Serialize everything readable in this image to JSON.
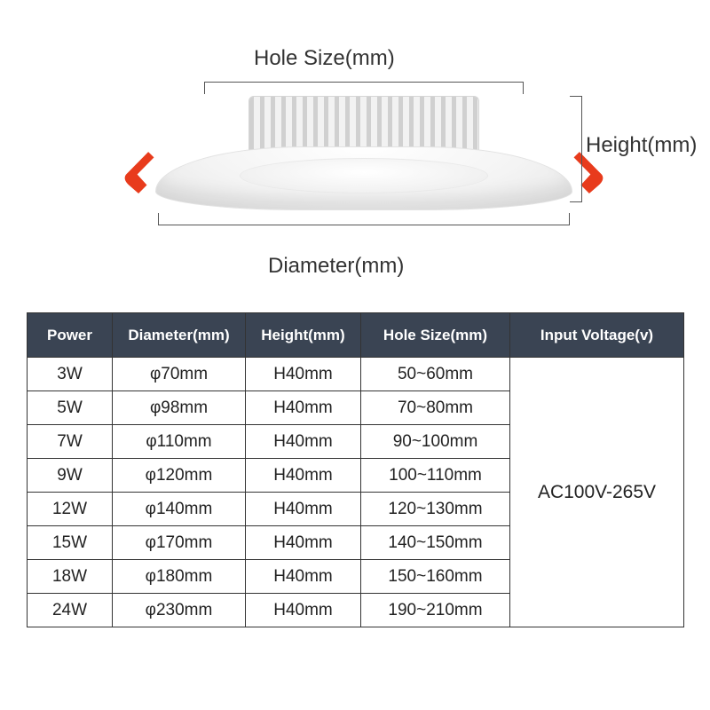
{
  "labels": {
    "holeSize": "Hole Size(mm)",
    "height": "Height(mm)",
    "diameter": "Diameter(mm)"
  },
  "colors": {
    "header_bg": "#3a4453",
    "header_fg": "#ffffff",
    "border": "#333333",
    "clip": "#e83b1c",
    "body_bg": "#ffffff",
    "product_light": "#f2f2f2",
    "product_dark": "#d0d0d0"
  },
  "table": {
    "headers": [
      "Power",
      "Diameter(mm)",
      "Height(mm)",
      "Hole Size(mm)",
      "Input Voltage(v)"
    ],
    "input_voltage": "AC100V-265V",
    "rows": [
      {
        "power": "3W",
        "diameter": "φ70mm",
        "height": "H40mm",
        "hole": "50~60mm"
      },
      {
        "power": "5W",
        "diameter": "φ98mm",
        "height": "H40mm",
        "hole": "70~80mm"
      },
      {
        "power": "7W",
        "diameter": "φ110mm",
        "height": "H40mm",
        "hole": "90~100mm"
      },
      {
        "power": "9W",
        "diameter": "φ120mm",
        "height": "H40mm",
        "hole": "100~110mm"
      },
      {
        "power": "12W",
        "diameter": "φ140mm",
        "height": "H40mm",
        "hole": "120~130mm"
      },
      {
        "power": "15W",
        "diameter": "φ170mm",
        "height": "H40mm",
        "hole": "140~150mm"
      },
      {
        "power": "18W",
        "diameter": "φ180mm",
        "height": "H40mm",
        "hole": "150~160mm"
      },
      {
        "power": "24W",
        "diameter": "φ230mm",
        "height": "H40mm",
        "hole": "190~210mm"
      }
    ]
  }
}
